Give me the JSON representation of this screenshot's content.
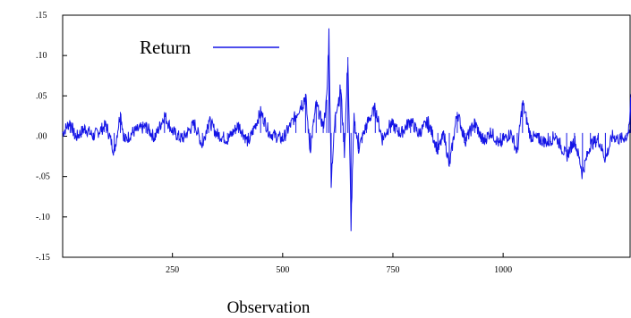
{
  "chart_data": {
    "type": "line",
    "title": "",
    "xlabel": "Observation",
    "ylabel": "",
    "xlim": [
      1,
      1290
    ],
    "ylim": [
      -0.15,
      0.15
    ],
    "y_ticks": [
      -0.15,
      -0.1,
      -0.05,
      0.0,
      0.05,
      0.1,
      0.15
    ],
    "y_tick_labels": [
      "-.15",
      "-.10",
      "-.05",
      ".00",
      ".05",
      ".10",
      ".15"
    ],
    "x_ticks": [
      250,
      500,
      750,
      1000
    ],
    "x_tick_labels": [
      "250",
      "500",
      "750",
      "1000"
    ],
    "grid": false,
    "legend": "top-left",
    "series": [
      {
        "name": "Return",
        "color": "#1414e6",
        "n": 1290,
        "points": [
          [
            1,
            0.004
          ],
          [
            18,
            0.018
          ],
          [
            30,
            -0.002
          ],
          [
            52,
            0.01
          ],
          [
            70,
            0.0
          ],
          [
            100,
            0.014
          ],
          [
            118,
            -0.02
          ],
          [
            132,
            0.03
          ],
          [
            141,
            -0.006
          ],
          [
            160,
            0.005
          ],
          [
            190,
            0.012
          ],
          [
            210,
            -0.002
          ],
          [
            232,
            0.026
          ],
          [
            250,
            0.006
          ],
          [
            272,
            -0.004
          ],
          [
            300,
            0.016
          ],
          [
            318,
            -0.012
          ],
          [
            332,
            0.02
          ],
          [
            350,
            0.003
          ],
          [
            375,
            -0.004
          ],
          [
            400,
            0.014
          ],
          [
            422,
            -0.008
          ],
          [
            450,
            0.03
          ],
          [
            470,
            0.004
          ],
          [
            500,
            -0.004
          ],
          [
            530,
            0.026
          ],
          [
            552,
            0.05
          ],
          [
            562,
            -0.018
          ],
          [
            576,
            0.04
          ],
          [
            592,
            0.012
          ],
          [
            600,
            0.045
          ],
          [
            605,
            0.128
          ],
          [
            610,
            -0.052
          ],
          [
            620,
            0.03
          ],
          [
            632,
            0.058
          ],
          [
            640,
            -0.02
          ],
          [
            648,
            0.098
          ],
          [
            655,
            -0.108
          ],
          [
            662,
            0.022
          ],
          [
            672,
            -0.016
          ],
          [
            690,
            0.014
          ],
          [
            710,
            0.035
          ],
          [
            726,
            -0.004
          ],
          [
            745,
            0.016
          ],
          [
            768,
            0.003
          ],
          [
            790,
            0.02
          ],
          [
            808,
            0.003
          ],
          [
            830,
            0.018
          ],
          [
            852,
            -0.018
          ],
          [
            866,
            0.003
          ],
          [
            878,
            -0.038
          ],
          [
            896,
            0.03
          ],
          [
            914,
            -0.006
          ],
          [
            936,
            0.017
          ],
          [
            954,
            -0.008
          ],
          [
            972,
            0.006
          ],
          [
            994,
            -0.012
          ],
          [
            1000,
            -0.004
          ],
          [
            1018,
            0.004
          ],
          [
            1032,
            -0.02
          ],
          [
            1044,
            0.042
          ],
          [
            1062,
            0.0
          ],
          [
            1082,
            -0.004
          ],
          [
            1102,
            -0.008
          ],
          [
            1118,
            0.001
          ],
          [
            1144,
            -0.025
          ],
          [
            1162,
            -0.004
          ],
          [
            1180,
            -0.045
          ],
          [
            1198,
            -0.01
          ],
          [
            1216,
            -0.004
          ],
          [
            1232,
            -0.028
          ],
          [
            1248,
            0.0
          ],
          [
            1266,
            -0.004
          ],
          [
            1280,
            0.0
          ],
          [
            1286,
            0.008
          ],
          [
            1290,
            0.052
          ]
        ]
      }
    ]
  }
}
